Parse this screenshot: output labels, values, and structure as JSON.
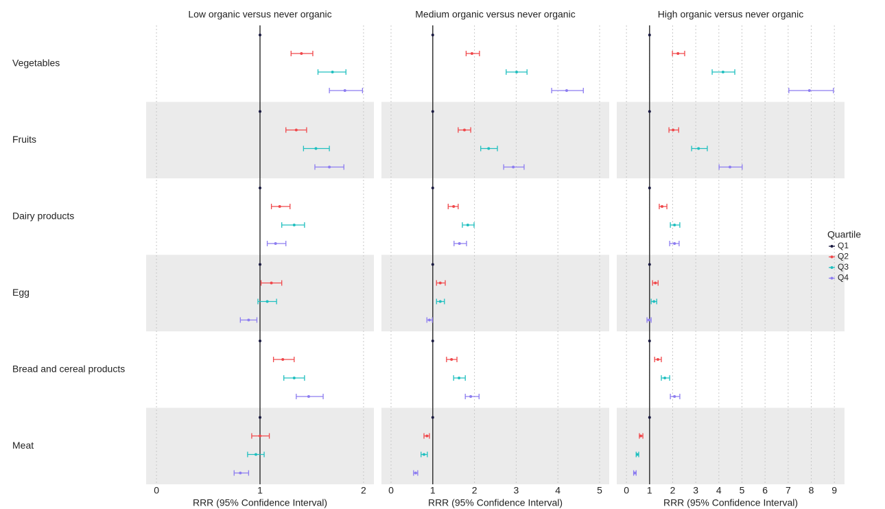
{
  "chart_data": [
    {
      "type": "forest",
      "title": "Low organic versus never organic",
      "xlabel": "RRR (95% Confidence Interval)",
      "categories": [
        "Vegetables",
        "Fruits",
        "Dairy products",
        "Egg",
        "Bread and cereal products",
        "Meat"
      ],
      "legend_title": "Quartile",
      "xlim": [
        -0.1,
        2.1
      ],
      "xticks": [
        0,
        1,
        2
      ],
      "grid": true,
      "series": [
        {
          "name": "Q1",
          "color": "#1a1a40",
          "values": [
            1,
            1,
            1,
            1,
            1,
            1
          ]
        },
        {
          "name": "Q2",
          "color": "#f0474a",
          "values": [
            1.4,
            1.35,
            1.19,
            1.11,
            1.22,
            1.0
          ],
          "lower": [
            1.3,
            1.25,
            1.11,
            1.01,
            1.13,
            0.92
          ],
          "upper": [
            1.51,
            1.45,
            1.29,
            1.21,
            1.33,
            1.09
          ]
        },
        {
          "name": "Q3",
          "color": "#1fbfbf",
          "values": [
            1.7,
            1.54,
            1.33,
            1.07,
            1.33,
            0.96
          ],
          "lower": [
            1.56,
            1.42,
            1.21,
            0.98,
            1.23,
            0.88
          ],
          "upper": [
            1.83,
            1.67,
            1.43,
            1.16,
            1.43,
            1.04
          ]
        },
        {
          "name": "Q4",
          "color": "#8c7cf0",
          "values": [
            1.82,
            1.67,
            1.15,
            0.89,
            1.47,
            0.81
          ],
          "lower": [
            1.67,
            1.53,
            1.07,
            0.81,
            1.35,
            0.75
          ],
          "upper": [
            1.99,
            1.81,
            1.25,
            0.97,
            1.61,
            0.89
          ]
        }
      ]
    },
    {
      "type": "forest",
      "title": "Medium organic versus never organic",
      "xlabel": "RRR (95% Confidence Interval)",
      "xlim": [
        -0.23,
        5.23
      ],
      "xticks": [
        0,
        1,
        2,
        3,
        4,
        5
      ],
      "grid": true,
      "series": [
        {
          "values": [
            1,
            1,
            1,
            1,
            1,
            1
          ]
        },
        {
          "values": [
            1.94,
            1.76,
            1.5,
            1.18,
            1.45,
            0.86
          ],
          "lower": [
            1.8,
            1.61,
            1.37,
            1.09,
            1.33,
            0.79
          ],
          "upper": [
            2.12,
            1.91,
            1.61,
            1.3,
            1.58,
            0.92
          ]
        },
        {
          "values": [
            3.01,
            2.34,
            1.84,
            1.18,
            1.63,
            0.79
          ],
          "lower": [
            2.76,
            2.15,
            1.71,
            1.09,
            1.5,
            0.72
          ],
          "upper": [
            3.26,
            2.55,
            1.99,
            1.28,
            1.78,
            0.87
          ]
        },
        {
          "values": [
            4.21,
            2.93,
            1.64,
            0.92,
            1.91,
            0.59
          ],
          "lower": [
            3.85,
            2.7,
            1.51,
            0.86,
            1.78,
            0.54
          ],
          "upper": [
            4.61,
            3.19,
            1.81,
            0.99,
            2.11,
            0.64
          ]
        }
      ]
    },
    {
      "type": "forest",
      "title": "High organic versus never organic",
      "xlabel": "RRR (95% Confidence Interval)",
      "xlim": [
        -0.42,
        9.44
      ],
      "xticks": [
        0,
        1,
        2,
        3,
        4,
        5,
        6,
        7,
        8,
        9
      ],
      "grid": true,
      "series": [
        {
          "values": [
            1,
            1,
            1,
            1,
            1,
            1
          ]
        },
        {
          "values": [
            2.23,
            2.02,
            1.54,
            1.25,
            1.36,
            0.62
          ],
          "lower": [
            1.99,
            1.84,
            1.42,
            1.13,
            1.22,
            0.56
          ],
          "upper": [
            2.52,
            2.26,
            1.75,
            1.37,
            1.51,
            0.71
          ]
        },
        {
          "values": [
            4.18,
            3.12,
            2.08,
            1.19,
            1.66,
            0.47
          ],
          "lower": [
            3.71,
            2.82,
            1.9,
            1.07,
            1.51,
            0.42
          ],
          "upper": [
            4.69,
            3.5,
            2.31,
            1.31,
            1.87,
            0.53
          ]
        },
        {
          "values": [
            7.92,
            4.48,
            2.08,
            0.98,
            2.08,
            0.36
          ],
          "lower": [
            7.03,
            4.01,
            1.87,
            0.89,
            1.9,
            0.31
          ],
          "upper": [
            8.96,
            5.01,
            2.28,
            1.07,
            2.31,
            0.42
          ]
        }
      ]
    }
  ]
}
